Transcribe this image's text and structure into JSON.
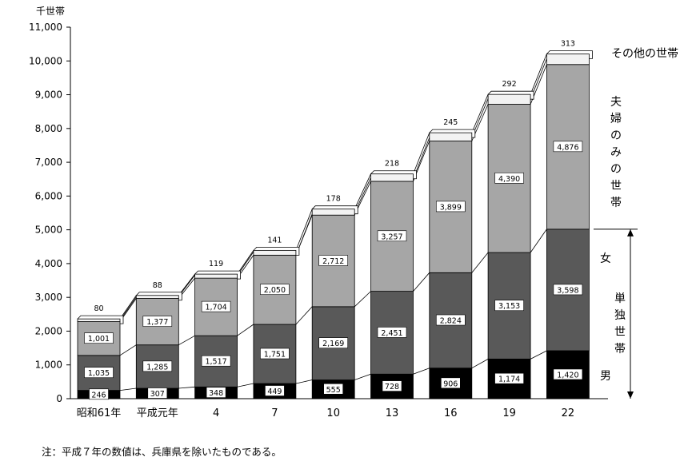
{
  "chart_data": {
    "type": "bar",
    "stacked": true,
    "unit_label": "千世帯",
    "categories": [
      "昭和61年",
      "平成元年",
      "4",
      "7",
      "10",
      "13",
      "16",
      "19",
      "22"
    ],
    "series": [
      {
        "name": "男",
        "values": [
          246,
          307,
          348,
          449,
          555,
          728,
          906,
          1174,
          1420
        ],
        "color": "#000000"
      },
      {
        "name": "女",
        "values": [
          1035,
          1285,
          1517,
          1751,
          2169,
          2451,
          2824,
          3153,
          3598
        ],
        "color": "#595959"
      },
      {
        "name": "夫婦のみの世帯",
        "values": [
          1001,
          1377,
          1704,
          2050,
          2712,
          3257,
          3899,
          4390,
          4876
        ],
        "color": "#a6a6a6"
      },
      {
        "name": "その他の世帯",
        "values": [
          80,
          88,
          119,
          141,
          178,
          218,
          245,
          292,
          313
        ],
        "color": "#f2f2f2"
      }
    ],
    "data_labels": {
      "男": [
        "246",
        "307",
        "348",
        "449",
        "555",
        "728",
        "906",
        "1,174",
        "1,420"
      ],
      "女": [
        "1,035",
        "1,285",
        "1,517",
        "1,751",
        "2,169",
        "2,451",
        "2,824",
        "3,153",
        "3,598"
      ],
      "夫婦のみの世帯": [
        "1,001",
        "1,377",
        "1,704",
        "2,050",
        "2,712",
        "3,257",
        "3,899",
        "4,390",
        "4,876"
      ],
      "その他の世帯": [
        "80",
        "88",
        "119",
        "141",
        "178",
        "218",
        "245",
        "292",
        "313"
      ]
    },
    "ylim": [
      0,
      11000
    ],
    "yticks": [
      0,
      1000,
      2000,
      3000,
      4000,
      5000,
      6000,
      7000,
      8000,
      9000,
      10000,
      11000
    ],
    "ytick_labels": [
      "0",
      "1,000",
      "2,000",
      "3,000",
      "4,000",
      "5,000",
      "6,000",
      "7,000",
      "8,000",
      "9,000",
      "10,000",
      "11,000"
    ],
    "grid": false,
    "legend_placement": "right (labels beside last bar)",
    "side_labels": {
      "other": "その他の世帯",
      "couple": "夫婦のみの世帯",
      "female": "女",
      "single": "単独世帯",
      "male": "男"
    }
  },
  "note": "注：平成７年の数値は、兵庫県を除いたものである。"
}
